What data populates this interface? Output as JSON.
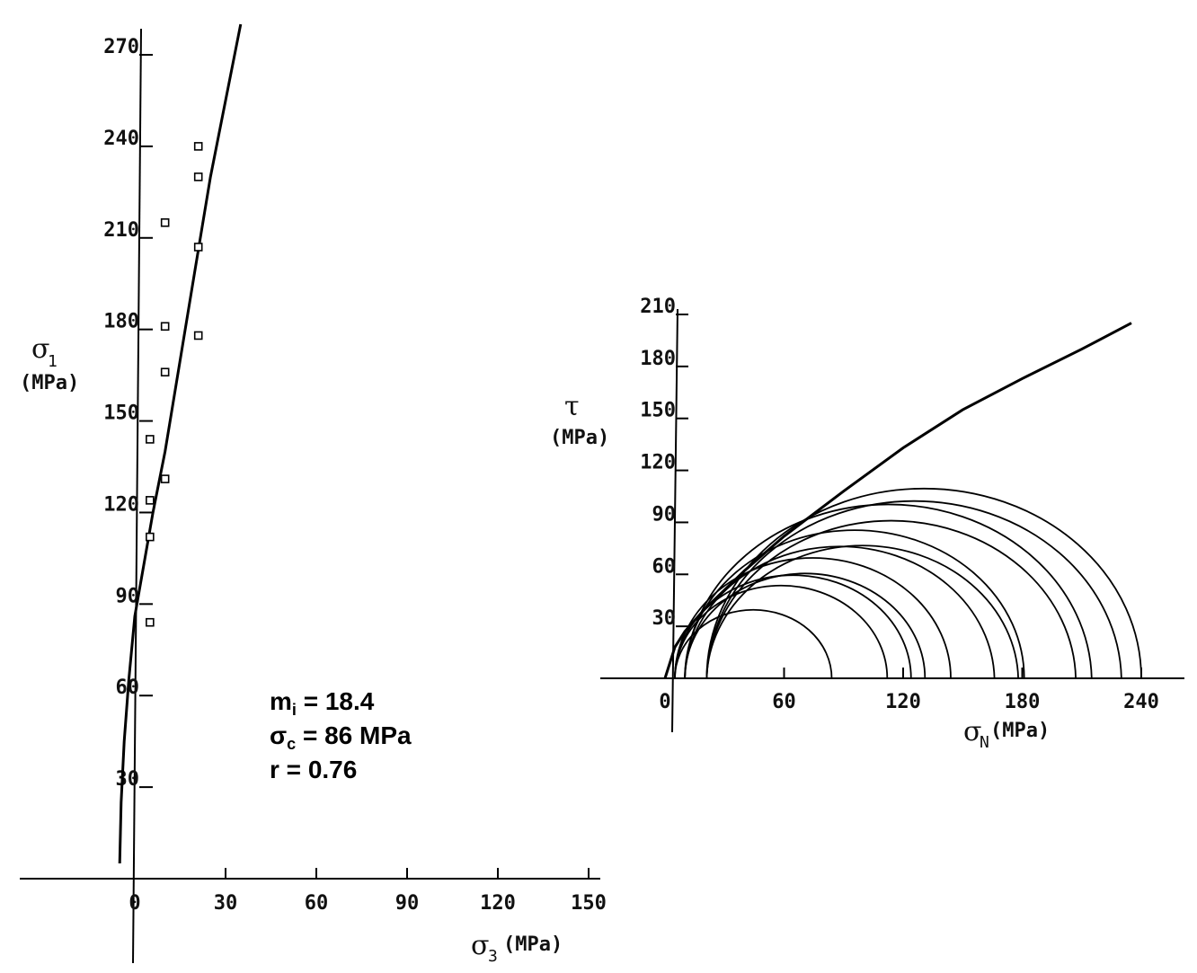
{
  "chart_data": [
    {
      "type": "scatter",
      "ylabel": {
        "symbol": "σ",
        "subscript": "1",
        "unit": "(MPa)"
      },
      "xlabel": {
        "symbol": "σ",
        "subscript": "3",
        "unit": "(MPa)"
      },
      "x_ticks": [
        "0",
        "30",
        "60",
        "90",
        "120",
        "150"
      ],
      "y_ticks": [
        "30",
        "60",
        "90",
        "120",
        "150",
        "180",
        "210",
        "240",
        "270"
      ],
      "xlim": [
        0,
        150
      ],
      "ylim": [
        0,
        270
      ],
      "points": [
        {
          "x": 5,
          "y": 84
        },
        {
          "x": 5,
          "y": 112
        },
        {
          "x": 5,
          "y": 124
        },
        {
          "x": 5,
          "y": 144
        },
        {
          "x": 10,
          "y": 131
        },
        {
          "x": 10,
          "y": 166
        },
        {
          "x": 10,
          "y": 181
        },
        {
          "x": 10,
          "y": 215
        },
        {
          "x": 21,
          "y": 178
        },
        {
          "x": 21,
          "y": 207
        },
        {
          "x": 21,
          "y": 230
        },
        {
          "x": 21,
          "y": 240
        }
      ],
      "fit_curve": [
        {
          "x": -5,
          "y": 5
        },
        {
          "x": -4.5,
          "y": 25
        },
        {
          "x": -3.5,
          "y": 45
        },
        {
          "x": -2,
          "y": 65
        },
        {
          "x": 0,
          "y": 86
        },
        {
          "x": 3,
          "y": 103
        },
        {
          "x": 6,
          "y": 120
        },
        {
          "x": 10,
          "y": 140
        },
        {
          "x": 15,
          "y": 170
        },
        {
          "x": 20,
          "y": 200
        },
        {
          "x": 25,
          "y": 230
        },
        {
          "x": 30,
          "y": 255
        },
        {
          "x": 35,
          "y": 280
        }
      ],
      "annotations": [
        {
          "label": "m",
          "subscript": "i",
          "text": " = 18.4"
        },
        {
          "label": "σ",
          "subscript": "c",
          "text": " = 86 MPa"
        },
        {
          "label": "r",
          "subscript": "",
          "text": " = 0.76"
        }
      ]
    },
    {
      "type": "line",
      "ylabel": {
        "symbol": "τ",
        "unit": "(MPa)"
      },
      "xlabel": {
        "symbol": "σ",
        "subscript": "N",
        "unit": "(MPa)"
      },
      "x_ticks": [
        "0",
        "60",
        "120",
        "180",
        "240"
      ],
      "y_ticks": [
        "30",
        "60",
        "90",
        "120",
        "150",
        "180",
        "210"
      ],
      "xlim": [
        0,
        240
      ],
      "ylim": [
        0,
        210
      ],
      "envelope": [
        {
          "x": 0,
          "y": 0
        },
        {
          "x": 5,
          "y": 18
        },
        {
          "x": 10,
          "y": 27
        },
        {
          "x": 20,
          "y": 40
        },
        {
          "x": 40,
          "y": 62
        },
        {
          "x": 60,
          "y": 82
        },
        {
          "x": 90,
          "y": 108
        },
        {
          "x": 120,
          "y": 133
        },
        {
          "x": 150,
          "y": 155
        },
        {
          "x": 180,
          "y": 173
        },
        {
          "x": 210,
          "y": 190
        },
        {
          "x": 235,
          "y": 205
        }
      ],
      "mohr_circles": [
        {
          "s3": 21,
          "s1": 230
        },
        {
          "s3": 21,
          "s1": 240
        },
        {
          "s3": 21,
          "s1": 207
        },
        {
          "s3": 10,
          "s1": 215
        },
        {
          "s3": 21,
          "s1": 178
        },
        {
          "s3": 10,
          "s1": 181
        },
        {
          "s3": 10,
          "s1": 166
        },
        {
          "s3": 5,
          "s1": 144
        },
        {
          "s3": 10,
          "s1": 131
        },
        {
          "s3": 5,
          "s1": 124
        },
        {
          "s3": 5,
          "s1": 112
        },
        {
          "s3": 5,
          "s1": 84
        }
      ]
    }
  ]
}
